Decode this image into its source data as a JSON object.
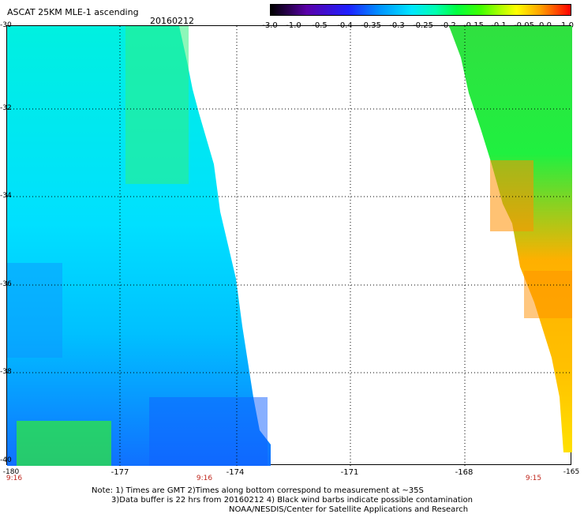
{
  "header": {
    "title": "ASCAT 25KM MLE-1 ascending",
    "date": "20160212"
  },
  "colorbar": {
    "ticks": [
      "-3.0",
      "-1.0",
      "-0.5",
      "-0.4",
      "-0.35",
      "-0.3",
      "-0.25",
      "-0.2",
      "-0.15",
      "-0.1",
      "-0.05",
      "0.0",
      "1.0"
    ],
    "colors": [
      "#000000",
      "#5a00a8",
      "#1e20ff",
      "#0090ff",
      "#00e6ff",
      "#00ffb0",
      "#00ff40",
      "#b4ff00",
      "#ffff00",
      "#ffa000",
      "#ff0000"
    ]
  },
  "axes": {
    "y_ticks": [
      "-30",
      "-32",
      "-34",
      "-36",
      "-38",
      "-40"
    ],
    "x_ticks": [
      "-180",
      "-177",
      "-174",
      "-171",
      "-168",
      "-165"
    ]
  },
  "times": [
    "9:16",
    "9:16",
    "9:15"
  ],
  "notes": [
    "Note: 1) Times are GMT 2)Times along bottom correspond to measurement at ~35S",
    "3)Data buffer is 22 hrs from 20160212 4) Black wind barbs indicate possible contamination",
    "NOAA/NESDIS/Center for Satellite Applications and Research"
  ]
}
